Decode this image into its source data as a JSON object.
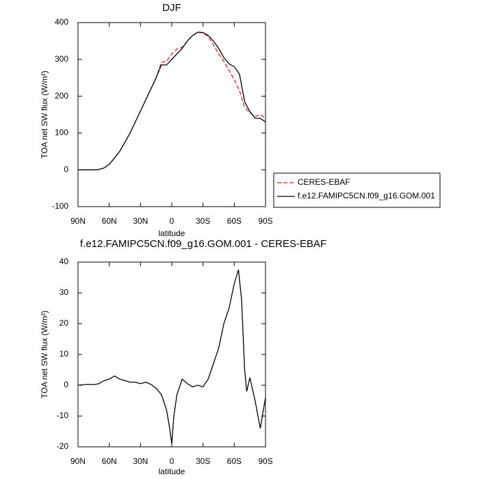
{
  "chart_data": [
    {
      "type": "line",
      "title": "DJF",
      "x_label": "latitude",
      "y_label": "TOA net SW flux (W/m²)",
      "x": [
        90,
        85,
        80,
        75,
        70,
        65,
        60,
        55,
        50,
        45,
        40,
        35,
        30,
        25,
        20,
        15,
        10,
        5,
        0,
        -5,
        -10,
        -15,
        -20,
        -25,
        -30,
        -35,
        -40,
        -45,
        -50,
        -55,
        -60,
        -65,
        -70,
        -75,
        -80,
        -85,
        -90
      ],
      "series": [
        {
          "name": "CERES-EBAF",
          "color": "#e0201b",
          "dash": true,
          "values": [
            0,
            0,
            0,
            0,
            1,
            5,
            15,
            32,
            50,
            75,
            100,
            130,
            160,
            190,
            220,
            250,
            292,
            295,
            315,
            328,
            333,
            350,
            365,
            373,
            372,
            362,
            340,
            315,
            295,
            270,
            245,
            215,
            170,
            155,
            145,
            150,
            140
          ]
        },
        {
          "name": "f.e12.FAMIPC5CN.f09_g16.GOM.001",
          "color": "#000000",
          "dash": false,
          "values": [
            0,
            0,
            0,
            0,
            1,
            5,
            15,
            32,
            50,
            75,
            100,
            130,
            160,
            190,
            220,
            250,
            285,
            285,
            300,
            315,
            330,
            350,
            365,
            374,
            373,
            365,
            350,
            330,
            305,
            288,
            280,
            260,
            185,
            158,
            140,
            140,
            130
          ]
        }
      ],
      "xlim": [
        90,
        -90
      ],
      "xticks": [
        {
          "value": 90,
          "label": "90N"
        },
        {
          "value": 60,
          "label": "60N"
        },
        {
          "value": 30,
          "label": "30N"
        },
        0,
        {
          "value": -30,
          "label": "30S"
        },
        {
          "value": -60,
          "label": "60S"
        },
        {
          "value": -90,
          "label": "90S"
        }
      ],
      "ylim": [
        -100,
        400
      ],
      "yticks": [
        -100,
        0,
        100,
        200,
        300,
        400
      ],
      "legend": "right"
    },
    {
      "type": "line",
      "title": "f.e12.FAMIPC5CN.f09_g16.GOM.001 - CERES-EBAF",
      "x_label": "latitude",
      "y_label": "TOA net SW flux (W/m²)",
      "x": [
        90,
        85,
        80,
        75,
        70,
        65,
        60,
        55,
        50,
        45,
        40,
        35,
        30,
        25,
        20,
        15,
        10,
        5,
        2,
        0,
        -2,
        -5,
        -10,
        -15,
        -20,
        -25,
        -30,
        -35,
        -40,
        -45,
        -50,
        -55,
        -60,
        -64,
        -67,
        -70,
        -72,
        -75,
        -80,
        -85,
        -88,
        -90
      ],
      "values": [
        0,
        0.2,
        0.3,
        0.2,
        0.5,
        1.5,
        2,
        3,
        2,
        1.5,
        1,
        1,
        0.5,
        1,
        0.3,
        -1,
        -3,
        -8,
        -14,
        -19,
        -10,
        -3,
        2,
        0.5,
        -0.5,
        0,
        -0.5,
        2,
        7,
        12,
        20,
        25,
        33,
        37.5,
        28,
        5,
        -2,
        2.5,
        -5,
        -14,
        -8,
        -4
      ],
      "color": "#000000",
      "xlim": [
        90,
        -90
      ],
      "xticks": [
        {
          "value": 90,
          "label": "90N"
        },
        {
          "value": 60,
          "label": "60N"
        },
        {
          "value": 30,
          "label": "30N"
        },
        0,
        {
          "value": -30,
          "label": "30S"
        },
        {
          "value": -60,
          "label": "60S"
        },
        {
          "value": -90,
          "label": "90S"
        }
      ],
      "ylim": [
        -20,
        40
      ],
      "yticks": [
        -20,
        -10,
        0,
        10,
        20,
        30,
        40
      ]
    }
  ]
}
